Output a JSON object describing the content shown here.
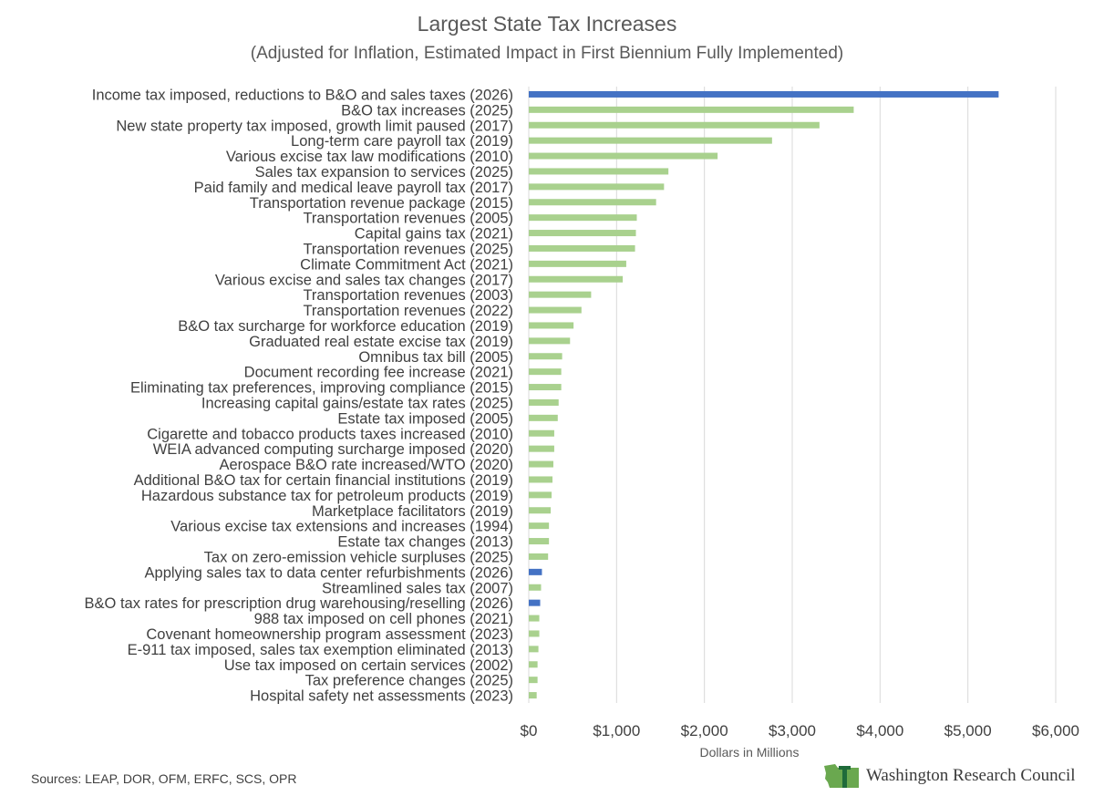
{
  "chart_data": {
    "type": "bar",
    "orientation": "horizontal",
    "title": "Largest State Tax Increases",
    "subtitle": "(Adjusted for Inflation, Estimated Impact in First Biennium Fully Implemented)",
    "xlabel": "Dollars in Millions",
    "ylabel": "",
    "xlim": [
      0,
      6000
    ],
    "x_ticks": [
      0,
      1000,
      2000,
      3000,
      4000,
      5000,
      6000
    ],
    "x_tick_labels": [
      "$0",
      "$1,000",
      "$2,000",
      "$3,000",
      "$4,000",
      "$5,000",
      "$6,000"
    ],
    "grid": "vertical",
    "colors": {
      "highlight": "#4472c4",
      "default": "#a9d18e"
    },
    "categories": [
      "Income tax imposed, reductions to B&O and sales taxes (2026)",
      "B&O tax increases (2025)",
      "New state property tax imposed, growth limit paused (2017)",
      "Long-term care payroll tax (2019)",
      "Various excise tax law modifications (2010)",
      "Sales tax expansion to services (2025)",
      "Paid family and medical leave payroll tax (2017)",
      "Transportation revenue package (2015)",
      "Transportation revenues (2005)",
      "Capital gains tax (2021)",
      "Transportation revenues (2025)",
      "Climate Commitment Act (2021)",
      "Various excise and sales tax changes (2017)",
      "Transportation revenues (2003)",
      "Transportation revenues (2022)",
      "B&O tax surcharge for workforce education (2019)",
      "Graduated real estate excise tax (2019)",
      "Omnibus tax bill (2005)",
      "Document recording fee increase (2021)",
      "Eliminating tax preferences, improving compliance (2015)",
      "Increasing capital gains/estate tax rates (2025)",
      "Estate tax imposed (2005)",
      "Cigarette and tobacco products taxes increased (2010)",
      "WEIA advanced computing surcharge imposed (2020)",
      "Aerospace B&O rate increased/WTO (2020)",
      "Additional B&O tax for certain financial institutions (2019)",
      "Hazardous substance tax for petroleum products (2019)",
      "Marketplace facilitators (2019)",
      "Various excise tax extensions and increases (1994)",
      "Estate tax changes (2013)",
      "Tax on zero-emission vehicle surpluses (2025)",
      "Applying sales tax to data center refurbishments (2026)",
      "Streamlined sales tax (2007)",
      "B&O tax rates for prescription drug warehousing/reselling (2026)",
      "988 tax  imposed on cell phones (2021)",
      "Covenant homeownership program assessment (2023)",
      "E-911 tax imposed, sales tax exemption eliminated (2013)",
      "Use tax imposed on certain services (2002)",
      "Tax preference changes (2025)",
      "Hospital safety net assessments (2023)"
    ],
    "values": [
      5350,
      3700,
      3310,
      2770,
      2150,
      1590,
      1540,
      1450,
      1230,
      1220,
      1210,
      1110,
      1070,
      710,
      600,
      510,
      470,
      380,
      370,
      370,
      340,
      330,
      290,
      290,
      280,
      270,
      260,
      250,
      230,
      230,
      220,
      150,
      140,
      130,
      120,
      120,
      110,
      100,
      100,
      90
    ],
    "highlighted": [
      true,
      false,
      false,
      false,
      false,
      false,
      false,
      false,
      false,
      false,
      false,
      false,
      false,
      false,
      false,
      false,
      false,
      false,
      false,
      false,
      false,
      false,
      false,
      false,
      false,
      false,
      false,
      false,
      false,
      false,
      false,
      true,
      false,
      true,
      false,
      false,
      false,
      false,
      false,
      false
    ]
  },
  "footer": {
    "source": "Sources: LEAP, DOR, OFM, ERFC, SCS, OPR",
    "org_name": "Washington Research Council",
    "logo_icon": "washington-state-icon"
  }
}
